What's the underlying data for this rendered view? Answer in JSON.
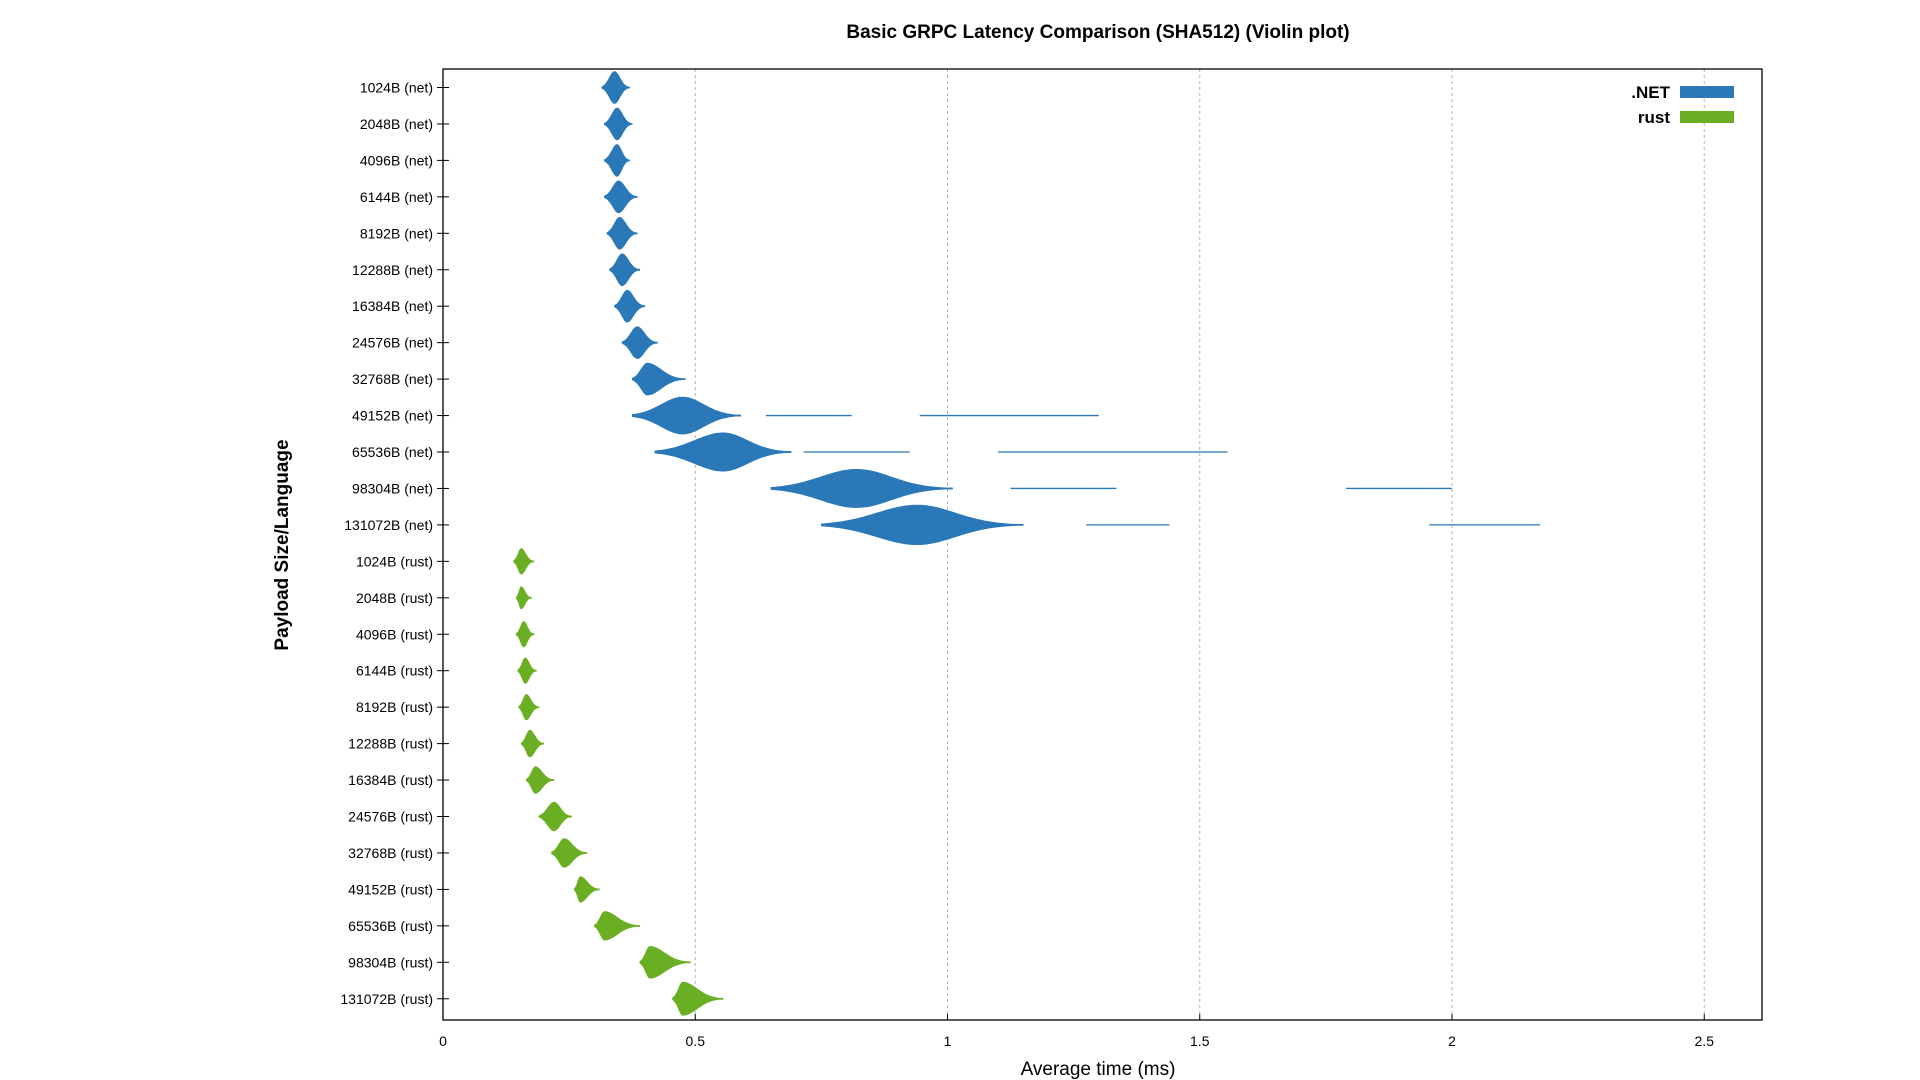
{
  "chart_data": {
    "type": "violin",
    "title": "Basic GRPC Latency Comparison (SHA512) (Violin plot)",
    "xlabel": "Average time (ms)",
    "ylabel": "Payload Size/Language",
    "xlim": [
      0,
      2.6
    ],
    "xticks": [
      0,
      0.5,
      1,
      1.5,
      2,
      2.5
    ],
    "xtick_labels": [
      "0",
      "0.5",
      "1",
      "1.5",
      "2",
      "2.5"
    ],
    "grid_x": true,
    "legend_position": "top-right",
    "series": [
      {
        "name": ".NET",
        "color": "#2a78b8"
      },
      {
        "name": "rust",
        "color": "#6aaf23"
      }
    ],
    "categories": [
      {
        "label": "1024B (net)",
        "series": 0,
        "center": 0.34,
        "min": 0.315,
        "max": 0.37,
        "width": 0.5
      },
      {
        "label": "2048B (net)",
        "series": 0,
        "center": 0.345,
        "min": 0.32,
        "max": 0.375,
        "width": 0.5
      },
      {
        "label": "4096B (net)",
        "series": 0,
        "center": 0.345,
        "min": 0.32,
        "max": 0.37,
        "width": 0.5
      },
      {
        "label": "6144B (net)",
        "series": 0,
        "center": 0.348,
        "min": 0.32,
        "max": 0.385,
        "width": 0.5
      },
      {
        "label": "8192B (net)",
        "series": 0,
        "center": 0.35,
        "min": 0.325,
        "max": 0.385,
        "width": 0.5
      },
      {
        "label": "12288B (net)",
        "series": 0,
        "center": 0.355,
        "min": 0.33,
        "max": 0.39,
        "width": 0.5
      },
      {
        "label": "16384B (net)",
        "series": 0,
        "center": 0.365,
        "min": 0.34,
        "max": 0.4,
        "width": 0.5
      },
      {
        "label": "24576B (net)",
        "series": 0,
        "center": 0.385,
        "min": 0.355,
        "max": 0.425,
        "width": 0.5
      },
      {
        "label": "32768B (net)",
        "series": 0,
        "center": 0.405,
        "min": 0.375,
        "max": 0.48,
        "width": 0.5
      },
      {
        "label": "49152B (net)",
        "series": 0,
        "center": 0.475,
        "min": 0.375,
        "max": 0.59,
        "width": 0.58,
        "segments": [
          [
            0.64,
            0.81
          ],
          [
            0.945,
            1.3
          ]
        ]
      },
      {
        "label": "65536B (net)",
        "series": 0,
        "center": 0.555,
        "min": 0.42,
        "max": 0.69,
        "width": 0.6,
        "segments": [
          [
            0.715,
            0.925
          ],
          [
            1.1,
            1.555
          ]
        ]
      },
      {
        "label": "98304B (net)",
        "series": 0,
        "center": 0.82,
        "min": 0.65,
        "max": 1.01,
        "width": 0.6,
        "segments": [
          [
            1.125,
            1.335
          ],
          [
            1.79,
            2.0
          ]
        ]
      },
      {
        "label": "131072B (net)",
        "series": 0,
        "center": 0.94,
        "min": 0.75,
        "max": 1.15,
        "width": 0.62,
        "segments": [
          [
            1.275,
            1.44
          ],
          [
            1.955,
            2.175
          ]
        ]
      },
      {
        "label": "1024B (rust)",
        "series": 1,
        "center": 0.155,
        "min": 0.14,
        "max": 0.18,
        "width": 0.4
      },
      {
        "label": "2048B (rust)",
        "series": 1,
        "center": 0.155,
        "min": 0.145,
        "max": 0.175,
        "width": 0.35
      },
      {
        "label": "4096B (rust)",
        "series": 1,
        "center": 0.16,
        "min": 0.145,
        "max": 0.18,
        "width": 0.4
      },
      {
        "label": "6144B (rust)",
        "series": 1,
        "center": 0.163,
        "min": 0.148,
        "max": 0.185,
        "width": 0.4
      },
      {
        "label": "8192B (rust)",
        "series": 1,
        "center": 0.165,
        "min": 0.15,
        "max": 0.19,
        "width": 0.4
      },
      {
        "label": "12288B (rust)",
        "series": 1,
        "center": 0.172,
        "min": 0.155,
        "max": 0.2,
        "width": 0.42
      },
      {
        "label": "16384B (rust)",
        "series": 1,
        "center": 0.183,
        "min": 0.165,
        "max": 0.22,
        "width": 0.42
      },
      {
        "label": "24576B (rust)",
        "series": 1,
        "center": 0.22,
        "min": 0.19,
        "max": 0.255,
        "width": 0.45
      },
      {
        "label": "32768B (rust)",
        "series": 1,
        "center": 0.24,
        "min": 0.215,
        "max": 0.285,
        "width": 0.45
      },
      {
        "label": "49152B (rust)",
        "series": 1,
        "center": 0.272,
        "min": 0.26,
        "max": 0.31,
        "width": 0.4
      },
      {
        "label": "65536B (rust)",
        "series": 1,
        "center": 0.32,
        "min": 0.3,
        "max": 0.39,
        "width": 0.45
      },
      {
        "label": "98304B (rust)",
        "series": 1,
        "center": 0.41,
        "min": 0.39,
        "max": 0.49,
        "width": 0.5
      },
      {
        "label": "131072B (rust)",
        "series": 1,
        "center": 0.475,
        "min": 0.455,
        "max": 0.555,
        "width": 0.52
      }
    ]
  }
}
